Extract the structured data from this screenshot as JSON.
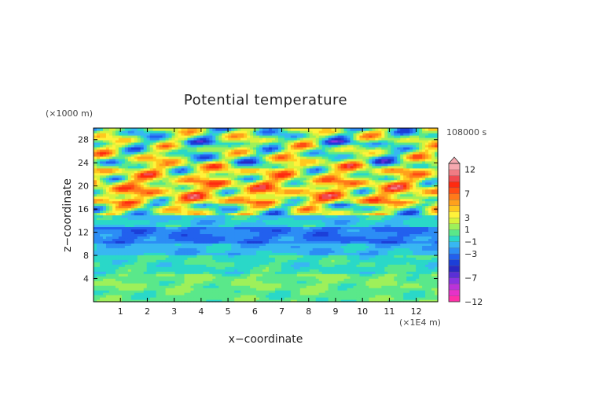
{
  "chart_data": {
    "type": "heatmap",
    "title": "Potential temperature",
    "xlabel": "x−coordinate",
    "ylabel": "z−coordinate",
    "x_unit": "(×1E4 m)",
    "y_unit": "(×1000 m)",
    "time_label": "108000 s",
    "xlim": [
      0,
      12.8
    ],
    "ylim": [
      0,
      30
    ],
    "x_ticks": [
      "1",
      "2",
      "3",
      "4",
      "5",
      "6",
      "7",
      "8",
      "9",
      "10",
      "11",
      "12"
    ],
    "y_ticks": [
      "4",
      "8",
      "12",
      "16",
      "20",
      "24",
      "28"
    ],
    "colorbar_labels": [
      "12",
      "7",
      "3",
      "1",
      "−1",
      "−3",
      "−7",
      "−12"
    ],
    "colorbar_levels": [
      -12,
      -10,
      -9,
      -8,
      -7,
      -6,
      -5,
      -4,
      -3,
      -2,
      -1,
      0,
      1,
      2,
      3,
      4,
      5,
      6,
      7,
      8,
      9,
      10,
      12
    ],
    "colorbar_colors": [
      "#ff2fa8",
      "#e632c8",
      "#bb33d9",
      "#8a33e0",
      "#5a2fd6",
      "#2a28c4",
      "#1c3fd8",
      "#2260ee",
      "#2c8df5",
      "#38b7f2",
      "#2ad8c8",
      "#5ae88a",
      "#9ef05a",
      "#d8f23c",
      "#fff23a",
      "#ffc91f",
      "#ffa11c",
      "#ff7a1a",
      "#ff4c14",
      "#ff2a10",
      "#f04a50",
      "#f07c84",
      "#f7a9b0"
    ],
    "layers": [
      {
        "z_range": [
          0,
          2
        ],
        "value": 0.5
      },
      {
        "z_range": [
          2,
          5
        ],
        "value": 0.8
      },
      {
        "z_range": [
          5,
          8
        ],
        "value": -0.2
      },
      {
        "z_range": [
          8,
          10
        ],
        "value": -1.5
      },
      {
        "z_range": [
          10,
          13
        ],
        "value": -3
      },
      {
        "z_range": [
          13,
          15
        ],
        "value": -1
      },
      {
        "z_range": [
          15,
          17
        ],
        "value": 1.5
      },
      {
        "z_range": [
          17,
          21
        ],
        "value": 4
      },
      {
        "z_range": [
          21,
          24
        ],
        "value": 3
      },
      {
        "z_range": [
          24,
          27
        ],
        "value": 2
      },
      {
        "z_range": [
          27,
          30
        ],
        "value": 1
      }
    ]
  }
}
